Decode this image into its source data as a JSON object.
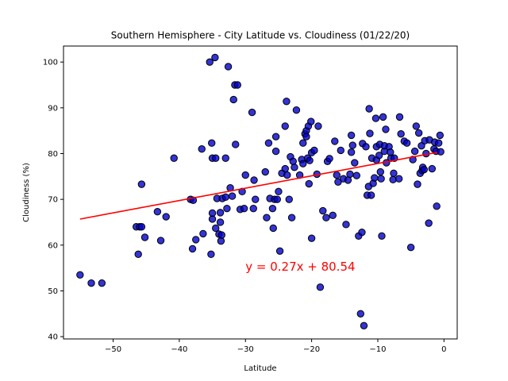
{
  "chart_data": {
    "type": "scatter",
    "title": "Southern Hemisphere - City Latitude vs. Cloudiness (01/22/20)",
    "xlabel": "Latitude",
    "ylabel": "Cloudiness (%)",
    "xlim": [
      -57.5,
      2.0
    ],
    "ylim": [
      39.5,
      103.5
    ],
    "xticks": [
      -50,
      -40,
      -30,
      -20,
      -10,
      0
    ],
    "yticks": [
      40,
      50,
      60,
      70,
      80,
      90,
      100
    ],
    "grid": false,
    "marker_fill": "#0000cc",
    "marker_edge": "#000000",
    "regression": {
      "slope": 0.27,
      "intercept": 80.54,
      "x_range": [
        -55,
        -1
      ],
      "color": "#ff0000",
      "equation": "y = 0.27x + 80.54",
      "label_at": [
        -30,
        55.5
      ]
    },
    "points": [
      [
        -55,
        53.5
      ],
      [
        -53.3,
        51.7
      ],
      [
        -51.7,
        51.7
      ],
      [
        -46.5,
        64
      ],
      [
        -46.2,
        58
      ],
      [
        -46,
        64
      ],
      [
        -45.7,
        64
      ],
      [
        -45.7,
        73.3
      ],
      [
        -45.2,
        61.7
      ],
      [
        -43.3,
        67.3
      ],
      [
        -42.8,
        61
      ],
      [
        -42,
        66.2
      ],
      [
        -40.8,
        79
      ],
      [
        -38.3,
        70
      ],
      [
        -38,
        59.2
      ],
      [
        -37.9,
        69.8
      ],
      [
        -37.5,
        61.2
      ],
      [
        -36.6,
        81
      ],
      [
        -36.4,
        62.5
      ],
      [
        -35.4,
        100
      ],
      [
        -35.2,
        58
      ],
      [
        -35.1,
        82.3
      ],
      [
        -35,
        79
      ],
      [
        -35,
        65.7
      ],
      [
        -35,
        67
      ],
      [
        -34.6,
        101
      ],
      [
        -34.5,
        79
      ],
      [
        -34.5,
        63.7
      ],
      [
        -34.3,
        70.2
      ],
      [
        -34,
        62.4
      ],
      [
        -33.8,
        67.1
      ],
      [
        -33.8,
        65
      ],
      [
        -33.7,
        60.9
      ],
      [
        -33.6,
        62.2
      ],
      [
        -33.5,
        70.2
      ],
      [
        -33,
        70.5
      ],
      [
        -33,
        79
      ],
      [
        -32.8,
        68
      ],
      [
        -32.6,
        99
      ],
      [
        -32.3,
        72.5
      ],
      [
        -32,
        70.7
      ],
      [
        -31.8,
        91.8
      ],
      [
        -31.6,
        95
      ],
      [
        -31.5,
        82
      ],
      [
        -31.2,
        95
      ],
      [
        -30.8,
        67.8
      ],
      [
        -30.5,
        71.7
      ],
      [
        -30.2,
        68
      ],
      [
        -30,
        75.3
      ],
      [
        -29,
        89
      ],
      [
        -28.8,
        68
      ],
      [
        -28.7,
        74.2
      ],
      [
        -28.5,
        70
      ],
      [
        -27,
        76
      ],
      [
        -26.8,
        66
      ],
      [
        -26.5,
        82.3
      ],
      [
        -26.3,
        70.2
      ],
      [
        -25.9,
        68
      ],
      [
        -25.8,
        63.7
      ],
      [
        -25.6,
        70
      ],
      [
        -25.4,
        80.5
      ],
      [
        -25.4,
        83.7
      ],
      [
        -25.2,
        70
      ],
      [
        -25,
        71.7
      ],
      [
        -24.8,
        58.7
      ],
      [
        -24.5,
        75.7
      ],
      [
        -24,
        86
      ],
      [
        -24,
        76.7
      ],
      [
        -23.8,
        91.4
      ],
      [
        -23.7,
        75.3
      ],
      [
        -23.4,
        70
      ],
      [
        -23.2,
        79.3
      ],
      [
        -23,
        66
      ],
      [
        -22.8,
        78.3
      ],
      [
        -22.6,
        77
      ],
      [
        -22.3,
        89.5
      ],
      [
        -21.8,
        75.3
      ],
      [
        -21.5,
        78.7
      ],
      [
        -21.3,
        82.3
      ],
      [
        -21.3,
        77.8
      ],
      [
        -21,
        84.3
      ],
      [
        -20.8,
        85
      ],
      [
        -20.8,
        83.7
      ],
      [
        -20.6,
        79
      ],
      [
        -20.5,
        86
      ],
      [
        -20.4,
        73.4
      ],
      [
        -20.3,
        78.5
      ],
      [
        -20.1,
        87
      ],
      [
        -20,
        80.2
      ],
      [
        -20,
        61.5
      ],
      [
        -19.6,
        80.7
      ],
      [
        -19.2,
        75.5
      ],
      [
        -19,
        86
      ],
      [
        -18.7,
        50.8
      ],
      [
        -18.3,
        67.5
      ],
      [
        -17.8,
        66
      ],
      [
        -17.6,
        78.3
      ],
      [
        -17.3,
        78.9
      ],
      [
        -16.8,
        66.5
      ],
      [
        -16.5,
        82.7
      ],
      [
        -16.2,
        75.3
      ],
      [
        -16,
        73.8
      ],
      [
        -15.6,
        80.7
      ],
      [
        -15.2,
        74.5
      ],
      [
        -14.8,
        64.5
      ],
      [
        -14.5,
        74.2
      ],
      [
        -14.2,
        75.5
      ],
      [
        -14,
        84
      ],
      [
        -14,
        80.3
      ],
      [
        -13.8,
        81.8
      ],
      [
        -13.5,
        78
      ],
      [
        -13.2,
        75.2
      ],
      [
        -12.9,
        62
      ],
      [
        -12.6,
        45
      ],
      [
        -12.4,
        62.8
      ],
      [
        -12.3,
        82.2
      ],
      [
        -12.1,
        42.4
      ],
      [
        -11.8,
        81.5
      ],
      [
        -11.6,
        70.9
      ],
      [
        -11.4,
        72.8
      ],
      [
        -11.3,
        89.8
      ],
      [
        -11.2,
        84.4
      ],
      [
        -11,
        70.9
      ],
      [
        -10.9,
        79
      ],
      [
        -10.7,
        73.5
      ],
      [
        -10.5,
        74.7
      ],
      [
        -10.3,
        87.7
      ],
      [
        -10.2,
        78.6
      ],
      [
        -10.2,
        81.5
      ],
      [
        -9.8,
        79.6
      ],
      [
        -9.7,
        82
      ],
      [
        -9.6,
        76
      ],
      [
        -9.5,
        74.5
      ],
      [
        -9.4,
        62
      ],
      [
        -9.2,
        88
      ],
      [
        -9,
        80.5
      ],
      [
        -9,
        81.7
      ],
      [
        -8.8,
        85.3
      ],
      [
        -8.7,
        78
      ],
      [
        -8.3,
        81.5
      ],
      [
        -8.1,
        80.3
      ],
      [
        -8,
        79
      ],
      [
        -7.7,
        74.3
      ],
      [
        -7.6,
        75.7
      ],
      [
        -7.5,
        79
      ],
      [
        -6.8,
        74.5
      ],
      [
        -6.7,
        88
      ],
      [
        -6.5,
        84.3
      ],
      [
        -6,
        82.7
      ],
      [
        -5.6,
        82.3
      ],
      [
        -5,
        59.5
      ],
      [
        -4.7,
        78.7
      ],
      [
        -4.4,
        80.5
      ],
      [
        -4.2,
        86
      ],
      [
        -4,
        73.3
      ],
      [
        -3.8,
        84.5
      ],
      [
        -3.6,
        75.7
      ],
      [
        -3.4,
        81.7
      ],
      [
        -3.3,
        76.3
      ],
      [
        -3.2,
        77
      ],
      [
        -3,
        76.5
      ],
      [
        -2.9,
        82.8
      ],
      [
        -2.7,
        80
      ],
      [
        -2.3,
        64.8
      ],
      [
        -2.2,
        83
      ],
      [
        -1.8,
        76.7
      ],
      [
        -1.5,
        81
      ],
      [
        -1.4,
        82.5
      ],
      [
        -1.2,
        80.5
      ],
      [
        -1.1,
        68.5
      ],
      [
        -0.8,
        82.3
      ],
      [
        -0.6,
        84
      ],
      [
        -0.5,
        80.4
      ]
    ]
  }
}
